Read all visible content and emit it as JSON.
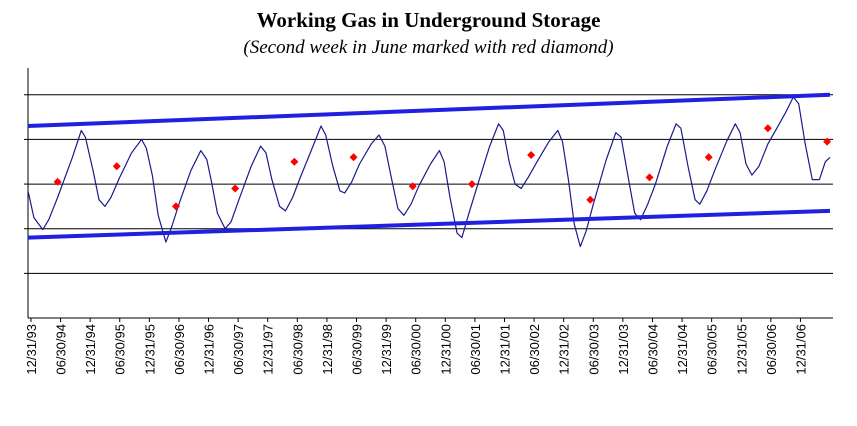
{
  "chart_data": {
    "type": "line",
    "title": "Working Gas in Underground Storage",
    "subtitle": "(Second week in June marked with red diamond)",
    "xlabel": "",
    "ylabel": "",
    "y_tick_labels": "none",
    "gridlines": "horizontal",
    "x_tick_labels": [
      "12/31/93",
      "06/30/94",
      "12/31/94",
      "06/30/95",
      "12/31/95",
      "06/30/96",
      "12/31/96",
      "06/30/97",
      "12/31/97",
      "06/30/98",
      "12/31/98",
      "06/30/99",
      "12/31/99",
      "06/30/00",
      "12/31/00",
      "06/30/01",
      "12/31/01",
      "06/30/02",
      "12/31/02",
      "06/30/03",
      "12/31/03",
      "06/30/04",
      "12/31/04",
      "06/30/05",
      "12/31/05",
      "06/30/06",
      "12/31/06"
    ],
    "series": [
      {
        "role": "storage-line",
        "color": "#1a1a8c",
        "points": [
          [
            1993.95,
            2.85
          ],
          [
            1994.05,
            2.25
          ],
          [
            1994.2,
            1.98
          ],
          [
            1994.3,
            2.2
          ],
          [
            1994.45,
            2.7
          ],
          [
            1994.7,
            3.6
          ],
          [
            1994.85,
            4.2
          ],
          [
            1994.92,
            4.05
          ],
          [
            1995.05,
            3.3
          ],
          [
            1995.15,
            2.65
          ],
          [
            1995.25,
            2.5
          ],
          [
            1995.35,
            2.7
          ],
          [
            1995.5,
            3.15
          ],
          [
            1995.7,
            3.7
          ],
          [
            1995.87,
            4.0
          ],
          [
            1995.95,
            3.8
          ],
          [
            1996.05,
            3.2
          ],
          [
            1996.15,
            2.3
          ],
          [
            1996.28,
            1.7
          ],
          [
            1996.38,
            2.05
          ],
          [
            1996.5,
            2.55
          ],
          [
            1996.7,
            3.3
          ],
          [
            1996.87,
            3.75
          ],
          [
            1996.97,
            3.55
          ],
          [
            1997.05,
            3.05
          ],
          [
            1997.15,
            2.35
          ],
          [
            1997.28,
            2.0
          ],
          [
            1997.38,
            2.15
          ],
          [
            1997.5,
            2.6
          ],
          [
            1997.72,
            3.4
          ],
          [
            1997.88,
            3.85
          ],
          [
            1997.97,
            3.7
          ],
          [
            1998.07,
            3.1
          ],
          [
            1998.2,
            2.5
          ],
          [
            1998.3,
            2.4
          ],
          [
            1998.42,
            2.7
          ],
          [
            1998.55,
            3.15
          ],
          [
            1998.75,
            3.8
          ],
          [
            1998.9,
            4.3
          ],
          [
            1998.98,
            4.1
          ],
          [
            1999.1,
            3.4
          ],
          [
            1999.22,
            2.85
          ],
          [
            1999.3,
            2.8
          ],
          [
            1999.42,
            3.05
          ],
          [
            1999.55,
            3.45
          ],
          [
            1999.75,
            3.9
          ],
          [
            1999.88,
            4.1
          ],
          [
            1999.98,
            3.85
          ],
          [
            2000.08,
            3.2
          ],
          [
            2000.2,
            2.45
          ],
          [
            2000.3,
            2.3
          ],
          [
            2000.42,
            2.55
          ],
          [
            2000.55,
            2.95
          ],
          [
            2000.75,
            3.45
          ],
          [
            2000.9,
            3.75
          ],
          [
            2000.98,
            3.5
          ],
          [
            2001.08,
            2.7
          ],
          [
            2001.2,
            1.9
          ],
          [
            2001.28,
            1.8
          ],
          [
            2001.4,
            2.35
          ],
          [
            2001.55,
            3.0
          ],
          [
            2001.75,
            3.85
          ],
          [
            2001.9,
            4.35
          ],
          [
            2001.98,
            4.2
          ],
          [
            2002.08,
            3.5
          ],
          [
            2002.18,
            3.0
          ],
          [
            2002.28,
            2.9
          ],
          [
            2002.4,
            3.15
          ],
          [
            2002.55,
            3.5
          ],
          [
            2002.75,
            3.95
          ],
          [
            2002.9,
            4.2
          ],
          [
            2002.98,
            3.95
          ],
          [
            2003.08,
            3.1
          ],
          [
            2003.18,
            2.1
          ],
          [
            2003.28,
            1.6
          ],
          [
            2003.38,
            1.95
          ],
          [
            2003.5,
            2.55
          ],
          [
            2003.72,
            3.55
          ],
          [
            2003.88,
            4.15
          ],
          [
            2003.97,
            4.05
          ],
          [
            2004.07,
            3.3
          ],
          [
            2004.2,
            2.35
          ],
          [
            2004.3,
            2.2
          ],
          [
            2004.42,
            2.55
          ],
          [
            2004.55,
            3.0
          ],
          [
            2004.75,
            3.85
          ],
          [
            2004.9,
            4.35
          ],
          [
            2004.98,
            4.25
          ],
          [
            2005.1,
            3.4
          ],
          [
            2005.22,
            2.65
          ],
          [
            2005.3,
            2.55
          ],
          [
            2005.42,
            2.85
          ],
          [
            2005.55,
            3.3
          ],
          [
            2005.75,
            3.95
          ],
          [
            2005.9,
            4.35
          ],
          [
            2005.98,
            4.15
          ],
          [
            2006.08,
            3.45
          ],
          [
            2006.18,
            3.2
          ],
          [
            2006.3,
            3.4
          ],
          [
            2006.45,
            3.9
          ],
          [
            2006.6,
            4.25
          ],
          [
            2006.75,
            4.6
          ],
          [
            2006.88,
            4.95
          ],
          [
            2006.97,
            4.8
          ],
          [
            2007.08,
            3.9
          ],
          [
            2007.2,
            3.1
          ],
          [
            2007.32,
            3.1
          ],
          [
            2007.42,
            3.5
          ],
          [
            2007.5,
            3.6
          ]
        ]
      },
      {
        "role": "june-markers",
        "color": "#ff0000",
        "points": [
          [
            1994.45,
            3.05
          ],
          [
            1995.45,
            3.4
          ],
          [
            1996.45,
            2.5
          ],
          [
            1997.45,
            2.9
          ],
          [
            1998.45,
            3.5
          ],
          [
            1999.45,
            3.6
          ],
          [
            2000.45,
            2.95
          ],
          [
            2001.45,
            3.0
          ],
          [
            2002.45,
            3.65
          ],
          [
            2003.45,
            2.65
          ],
          [
            2004.45,
            3.15
          ],
          [
            2005.45,
            3.6
          ],
          [
            2006.45,
            4.25
          ],
          [
            2007.45,
            3.95
          ]
        ]
      },
      {
        "role": "upper-trend-line",
        "color": "#2020e0",
        "points": [
          [
            1993.95,
            4.3
          ],
          [
            2007.5,
            5.0
          ]
        ]
      },
      {
        "role": "lower-trend-line",
        "color": "#2020e0",
        "points": [
          [
            1993.95,
            1.8
          ],
          [
            2007.5,
            2.4
          ]
        ]
      }
    ],
    "xlim": [
      1993.95,
      2007.55
    ],
    "ylim": [
      0,
      5.6
    ],
    "ytick_values": [
      1,
      2,
      3,
      4,
      5
    ]
  }
}
